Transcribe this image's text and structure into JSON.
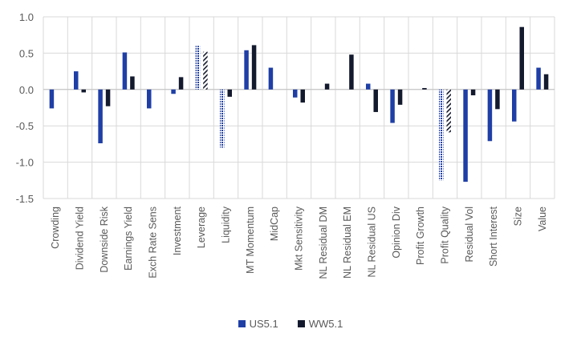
{
  "chart_data": {
    "type": "bar",
    "title": "",
    "xlabel": "",
    "ylabel": "",
    "ylim": [
      -1.5,
      1.0
    ],
    "yticks": [
      "1.0",
      "0.5",
      "0.0",
      "-0.5",
      "-1.0",
      "-1.5"
    ],
    "ytick_values": [
      1.0,
      0.5,
      0.0,
      -0.5,
      -1.0,
      -1.5
    ],
    "grid": true,
    "legend_position": "bottom",
    "categories": [
      "Crowding",
      "Dividend Yield",
      "Downside Risk",
      "Earnings Yield",
      "Exch Rate Sens",
      "Investment",
      "Leverage",
      "Liquidity",
      "MT Momentum",
      "MidCap",
      "Mkt Sensitivity",
      "NL Residual DM",
      "NL Residual EM",
      "NL Residual US",
      "Opinion Div",
      "Profit Growth",
      "Profit Quality",
      "Residual Vol",
      "Short Interest",
      "Size",
      "Value"
    ],
    "series": [
      {
        "name": "US5.1",
        "color": "#1f3fa6",
        "values": [
          -0.26,
          0.25,
          -0.74,
          0.51,
          -0.26,
          -0.06,
          0.6,
          -0.8,
          0.54,
          0.3,
          -0.11,
          0.0,
          0.0,
          0.08,
          -0.46,
          0.0,
          -1.25,
          -1.27,
          -0.71,
          -0.44,
          0.3
        ],
        "patterned": [
          "Leverage",
          "Liquidity",
          "Profit Quality"
        ]
      },
      {
        "name": "WW5.1",
        "color": "#141a2e",
        "values": [
          0.0,
          -0.04,
          -0.23,
          0.18,
          0.0,
          0.17,
          0.52,
          -0.1,
          0.61,
          0.0,
          -0.18,
          0.08,
          0.48,
          -0.31,
          -0.21,
          0.02,
          -0.59,
          -0.08,
          -0.27,
          0.86,
          0.21
        ],
        "patterned": [
          "Leverage",
          "Profit Quality"
        ]
      }
    ]
  }
}
